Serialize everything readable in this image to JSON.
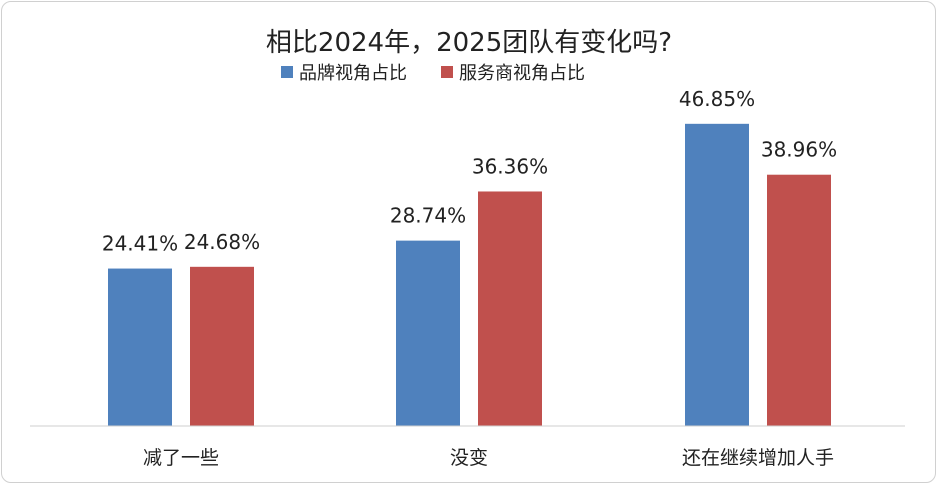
{
  "chart_data": {
    "type": "bar",
    "title": "相比2024年，2025团队有变化吗?",
    "categories": [
      "减了一些",
      "没变",
      "还在继续增加人手"
    ],
    "series": [
      {
        "name": "品牌视角占比",
        "values": [
          24.41,
          28.74,
          46.85
        ],
        "labels": [
          "24.41%",
          "28.74%",
          "46.85%"
        ],
        "color": "#4f81bd"
      },
      {
        "name": "服务商视角占比",
        "values": [
          24.68,
          36.36,
          38.96
        ],
        "labels": [
          "24.68%",
          "36.36%",
          "38.96%"
        ],
        "color": "#c0504d"
      }
    ],
    "ylim": [
      0,
      60
    ],
    "grid": false,
    "legend_position": "top-center",
    "xlabel": "",
    "ylabel": ""
  }
}
